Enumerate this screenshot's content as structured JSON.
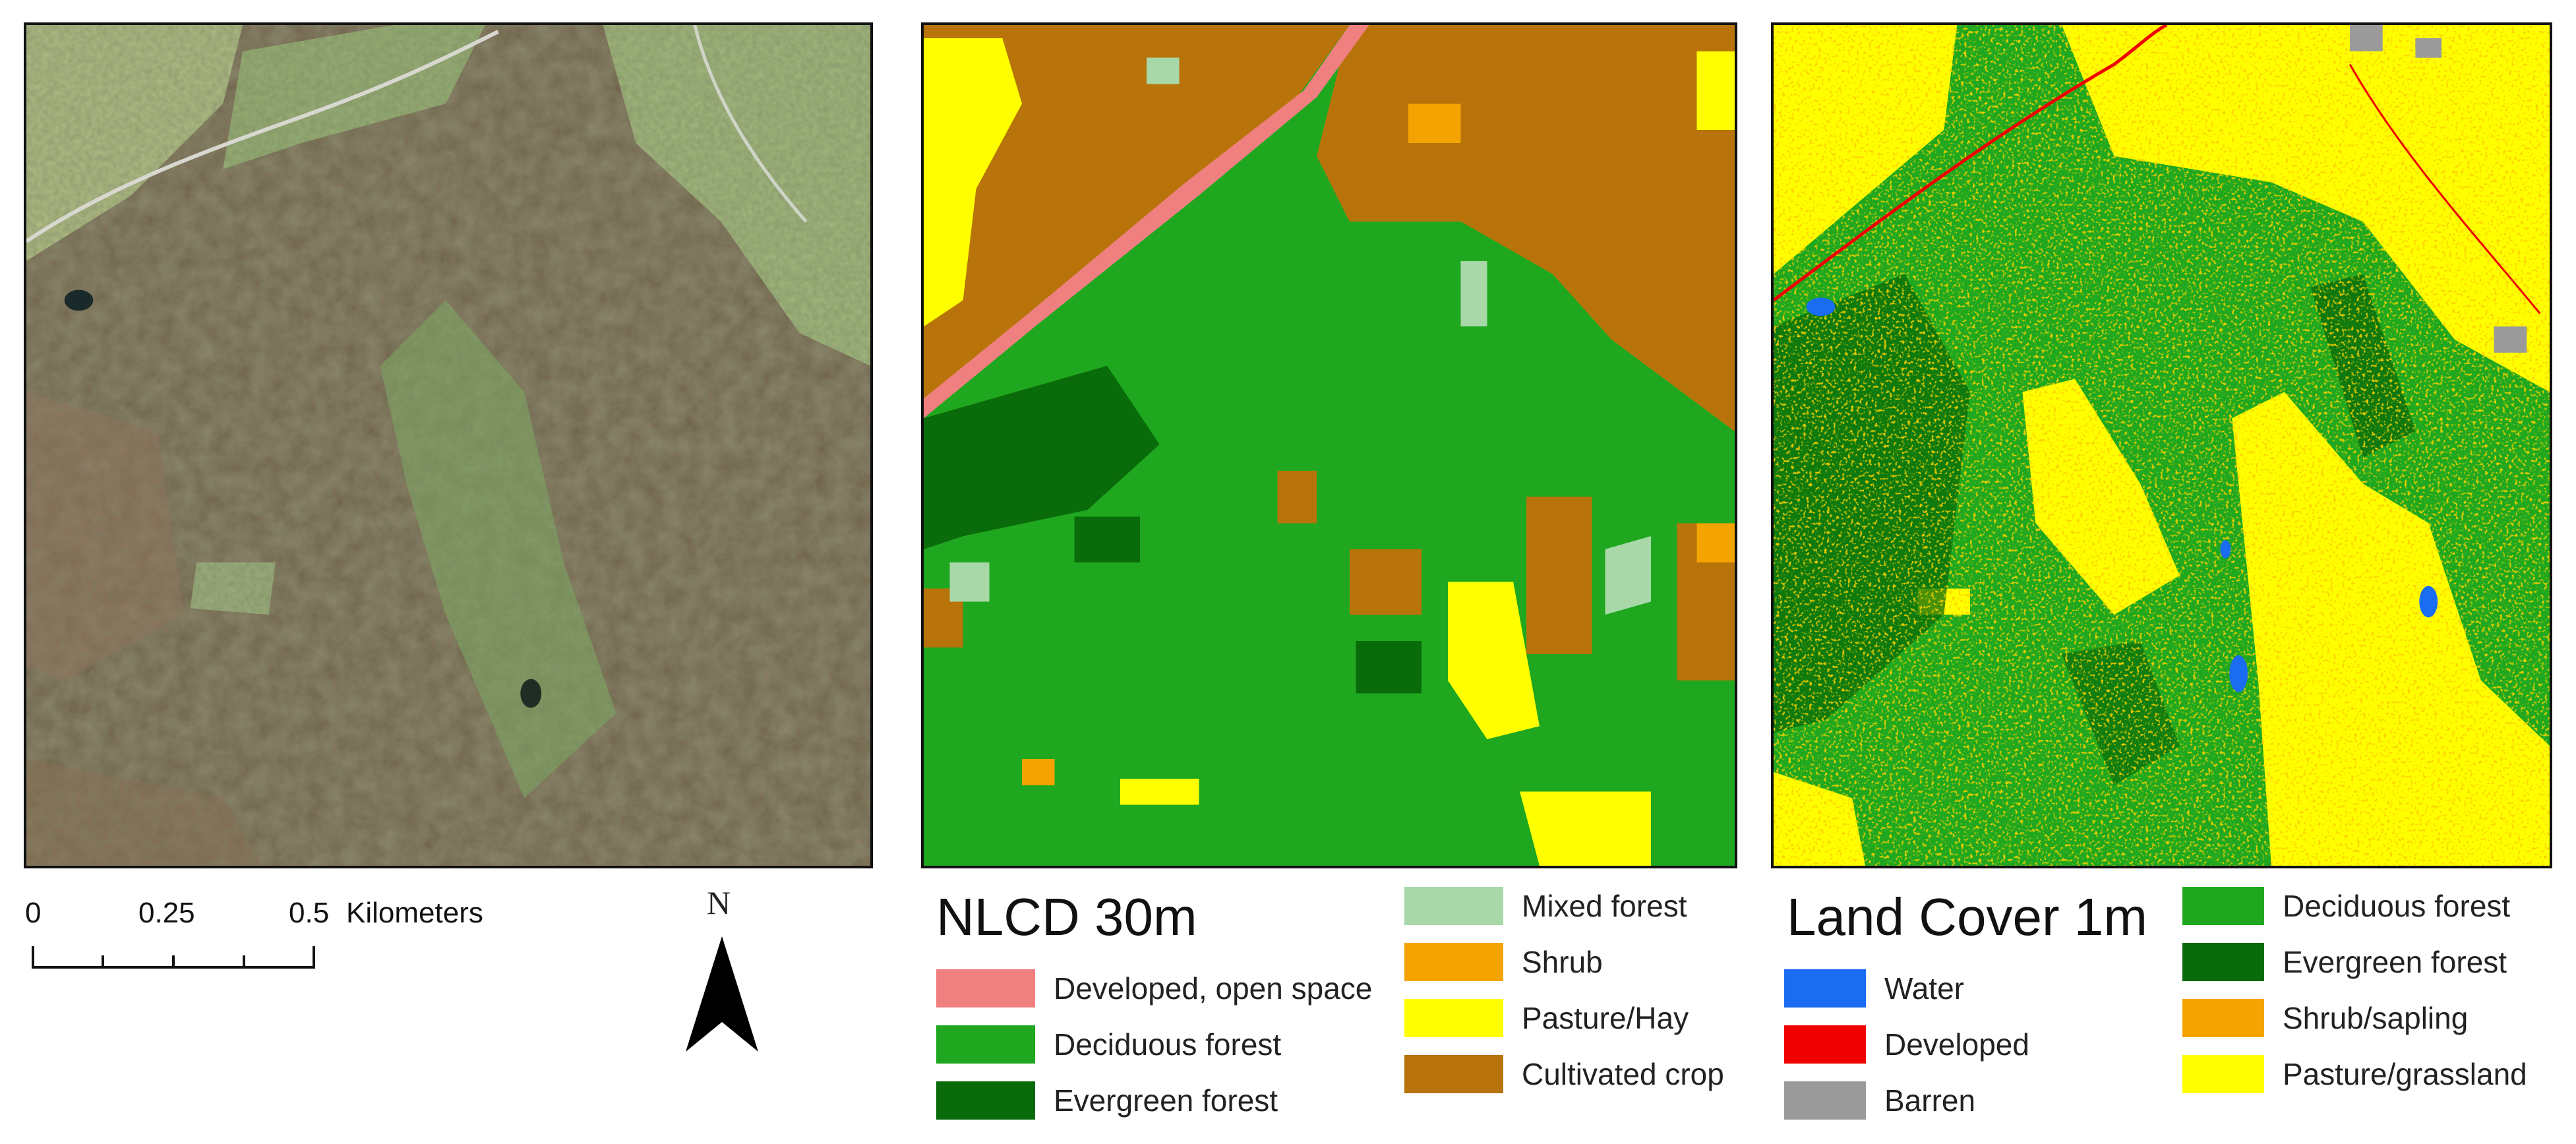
{
  "scale_bar": {
    "ticks": [
      "0",
      "0.25",
      "0.5"
    ],
    "unit": "Kilometers"
  },
  "north_arrow": {
    "label": "N"
  },
  "nlcd_legend": {
    "title": "NLCD 30m",
    "items": [
      {
        "label": "Developed, open space",
        "color": "#f08080"
      },
      {
        "label": "Deciduous forest",
        "color": "#1fa81f"
      },
      {
        "label": "Evergreen forest",
        "color": "#0a6b0a"
      },
      {
        "label": "Mixed forest",
        "color": "#a8d8a8"
      },
      {
        "label": "Shrub",
        "color": "#f4a300"
      },
      {
        "label": "Pasture/Hay",
        "color": "#ffff00"
      },
      {
        "label": "Cultivated crop",
        "color": "#b8740a"
      }
    ]
  },
  "lc_legend": {
    "title": "Land Cover 1m",
    "items": [
      {
        "label": "Water",
        "color": "#1a6cf0"
      },
      {
        "label": "Developed",
        "color": "#f00000"
      },
      {
        "label": "Barren",
        "color": "#9a9a9a"
      },
      {
        "label": "Deciduous forest",
        "color": "#1fa81f"
      },
      {
        "label": "Evergreen forest",
        "color": "#0a6b0a"
      },
      {
        "label": "Shrub/sapling",
        "color": "#f4a300"
      },
      {
        "label": "Pasture/grassland",
        "color": "#ffff00"
      }
    ]
  },
  "colors": {
    "aerial_forest": "#5a5236",
    "aerial_meadow": "#9cc27a",
    "aerial_brown": "#8a6a52"
  }
}
